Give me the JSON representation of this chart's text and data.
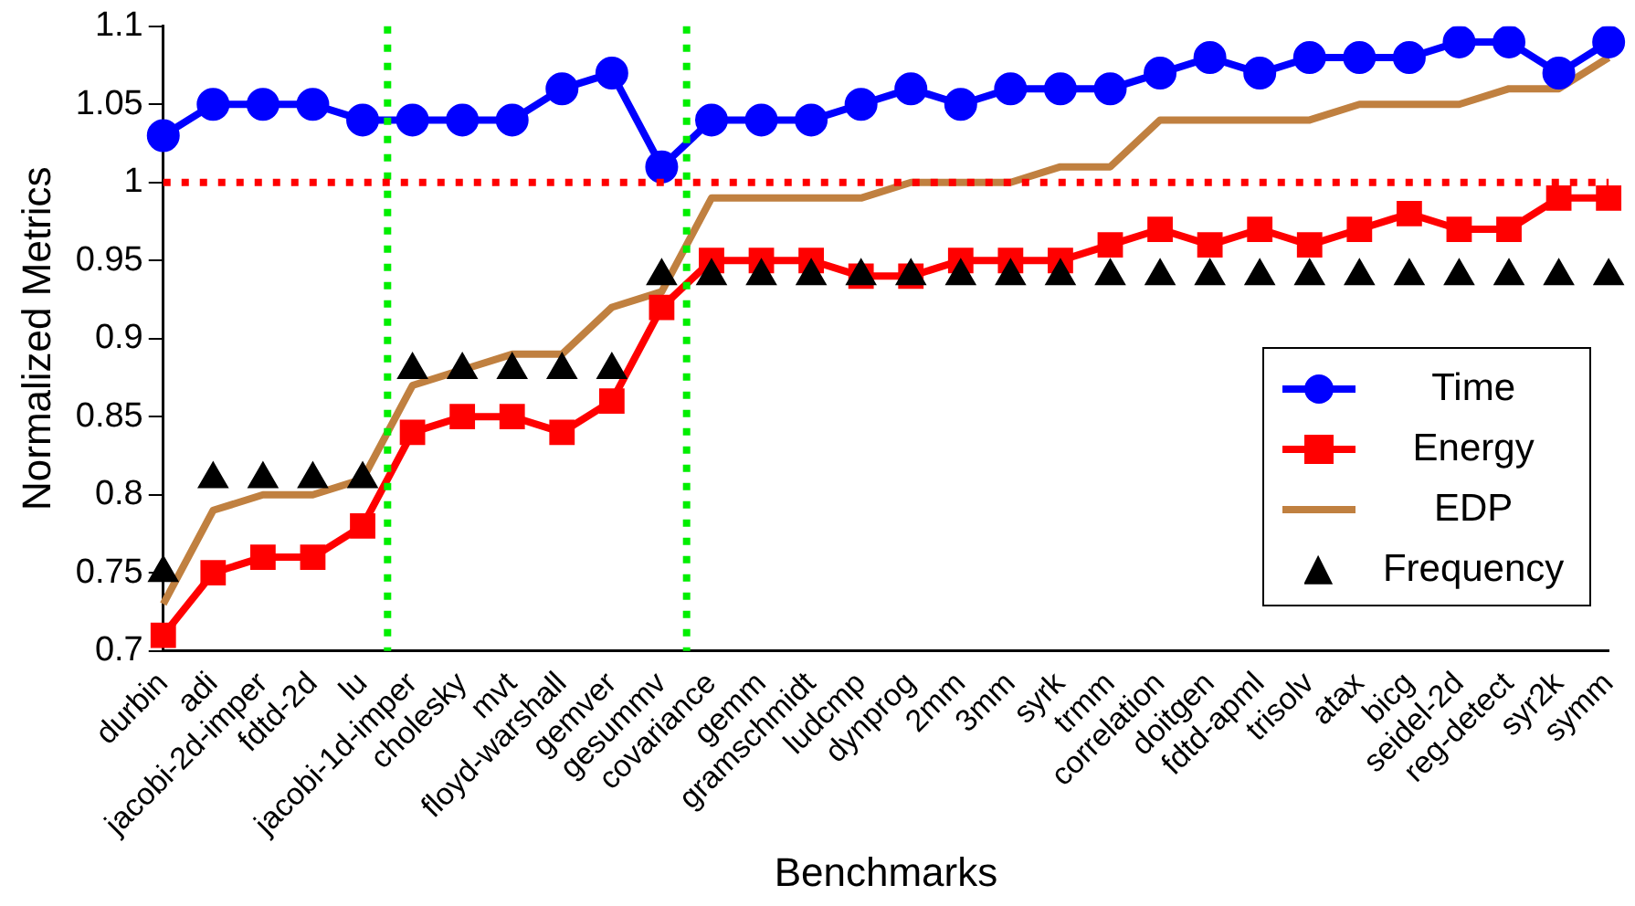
{
  "chart_data": {
    "type": "line",
    "xlabel": "Benchmarks",
    "ylabel": "Normalized Metrics",
    "categories": [
      "durbin",
      "adi",
      "jacobi-2d-imper",
      "fdtd-2d",
      "lu",
      "jacobi-1d-imper",
      "cholesky",
      "mvt",
      "floyd-warshall",
      "gemver",
      "gesummv",
      "covariance",
      "gemm",
      "gramschmidt",
      "ludcmp",
      "dynprog",
      "2mm",
      "3mm",
      "syrk",
      "trmm",
      "correlation",
      "doitgen",
      "fdtd-apml",
      "trisolv",
      "atax",
      "bicg",
      "seidel-2d",
      "reg-detect",
      "syr2k",
      "symm"
    ],
    "series": [
      {
        "name": "Time",
        "color": "#0000ff",
        "marker": "circle",
        "values": [
          1.03,
          1.05,
          1.05,
          1.05,
          1.04,
          1.04,
          1.04,
          1.04,
          1.06,
          1.07,
          1.01,
          1.04,
          1.04,
          1.04,
          1.05,
          1.06,
          1.05,
          1.06,
          1.06,
          1.06,
          1.07,
          1.08,
          1.07,
          1.08,
          1.08,
          1.08,
          1.09,
          1.09,
          1.07,
          1.09
        ]
      },
      {
        "name": "Energy",
        "color": "#ff0000",
        "marker": "square",
        "values": [
          0.71,
          0.75,
          0.76,
          0.76,
          0.78,
          0.84,
          0.85,
          0.85,
          0.84,
          0.86,
          0.92,
          0.95,
          0.95,
          0.95,
          0.94,
          0.94,
          0.95,
          0.95,
          0.95,
          0.96,
          0.97,
          0.96,
          0.97,
          0.96,
          0.97,
          0.98,
          0.97,
          0.97,
          0.99,
          0.99
        ]
      },
      {
        "name": "EDP",
        "color": "#c08040",
        "marker": "none",
        "values": [
          0.73,
          0.79,
          0.8,
          0.8,
          0.81,
          0.87,
          0.88,
          0.89,
          0.89,
          0.92,
          0.93,
          0.99,
          0.99,
          0.99,
          0.99,
          1.0,
          1.0,
          1.0,
          1.01,
          1.01,
          1.04,
          1.04,
          1.04,
          1.04,
          1.05,
          1.05,
          1.05,
          1.06,
          1.06,
          1.08
        ]
      },
      {
        "name": "Frequency",
        "type": "scatter",
        "color": "#000000",
        "marker": "triangle",
        "values": [
          0.75,
          0.81,
          0.81,
          0.81,
          0.81,
          0.88,
          0.88,
          0.88,
          0.88,
          0.88,
          0.94,
          0.94,
          0.94,
          0.94,
          0.94,
          0.94,
          0.94,
          0.94,
          0.94,
          0.94,
          0.94,
          0.94,
          0.94,
          0.94,
          0.94,
          0.94,
          0.94,
          0.94,
          0.94,
          0.94
        ]
      }
    ],
    "ylim": [
      0.7,
      1.1
    ],
    "yticks": [
      0.7,
      0.75,
      0.8,
      0.85,
      0.9,
      0.95,
      1,
      1.05,
      1.1
    ],
    "ref_lines": [
      {
        "axis": "y",
        "value": 1,
        "color": "#ff0000",
        "line_style": "dotted"
      }
    ],
    "legend": "bottom right",
    "grid": false
  }
}
